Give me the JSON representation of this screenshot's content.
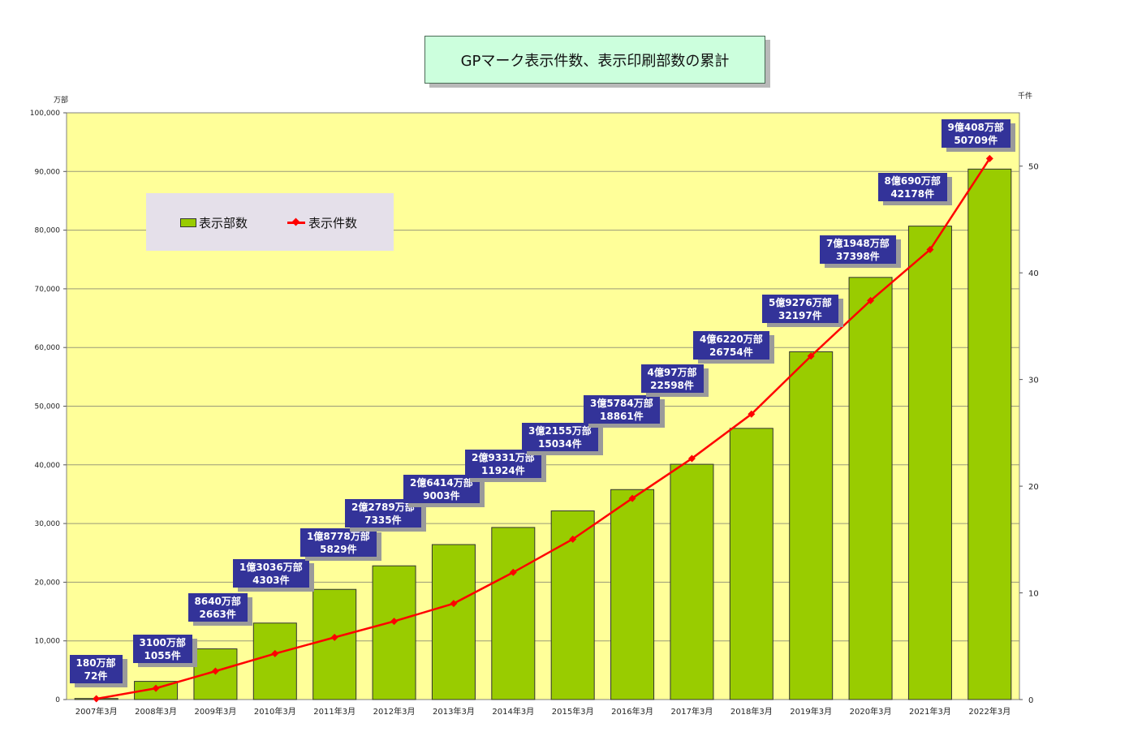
{
  "title": "GPマーク表示件数、表示印刷部数の累計",
  "left_unit": "万部",
  "right_unit": "千件",
  "legend": {
    "bars": "表示部数",
    "line": "表示件数"
  },
  "colors": {
    "bar": "#99cc00",
    "line": "#ff0000",
    "plot_bg": "#ffff99",
    "label_bg": "#333399"
  },
  "chart_data": {
    "type": "bar+line",
    "categories": [
      "2007年3月",
      "2008年3月",
      "2009年3月",
      "2010年3月",
      "2011年3月",
      "2012年3月",
      "2013年3月",
      "2014年3月",
      "2015年3月",
      "2016年3月",
      "2017年3月",
      "2018年3月",
      "2019年3月",
      "2020年3月",
      "2021年3月",
      "2022年3月"
    ],
    "y_left": {
      "min": 0,
      "max": 100000,
      "step": 10000,
      "tick_labels": [
        "0",
        "10,000",
        "20,000",
        "30,000",
        "40,000",
        "50,000",
        "60,000",
        "70,000",
        "80,000",
        "90,000",
        "100,000"
      ]
    },
    "y_right": {
      "min": 0,
      "max": 55,
      "ticks": [
        0,
        10,
        20,
        30,
        40,
        50
      ],
      "tick_labels": [
        "0",
        "10",
        "20",
        "30",
        "40",
        "50"
      ]
    },
    "series": [
      {
        "name": "表示部数",
        "type": "bar",
        "axis": "left",
        "values": [
          180,
          3100,
          8640,
          13036,
          18778,
          22789,
          26414,
          29331,
          32155,
          35784,
          40097,
          46220,
          59276,
          71948,
          80690,
          90408
        ]
      },
      {
        "name": "表示件数",
        "type": "line",
        "axis": "right",
        "values": [
          0.072,
          1.055,
          2.663,
          4.303,
          5.829,
          7.335,
          9.003,
          11.924,
          15.034,
          18.861,
          22.598,
          26.754,
          32.197,
          37.398,
          42.178,
          50.709
        ]
      }
    ],
    "data_labels": [
      {
        "line1": "180万部",
        "line2": "72件"
      },
      {
        "line1": "3100万部",
        "line2": "1055件"
      },
      {
        "line1": "8640万部",
        "line2": "2663件"
      },
      {
        "line1": "1億3036万部",
        "line2": "4303件"
      },
      {
        "line1": "1億8778万部",
        "line2": "5829件"
      },
      {
        "line1": "2億2789万部",
        "line2": "7335件"
      },
      {
        "line1": "2億6414万部",
        "line2": "9003件"
      },
      {
        "line1": "2億9331万部",
        "line2": "11924件"
      },
      {
        "line1": "3億2155万部",
        "line2": "15034件"
      },
      {
        "line1": "3億5784万部",
        "line2": "18861件"
      },
      {
        "line1": "4億97万部",
        "line2": "22598件"
      },
      {
        "line1": "4億6220万部",
        "line2": "26754件"
      },
      {
        "line1": "5億9276万部",
        "line2": "32197件"
      },
      {
        "line1": "7億1948万部",
        "line2": "37398件"
      },
      {
        "line1": "8億690万部",
        "line2": "42178件"
      },
      {
        "line1": "9億408万部",
        "line2": "50709件"
      }
    ],
    "grid": true,
    "legend_position": "top-left"
  }
}
